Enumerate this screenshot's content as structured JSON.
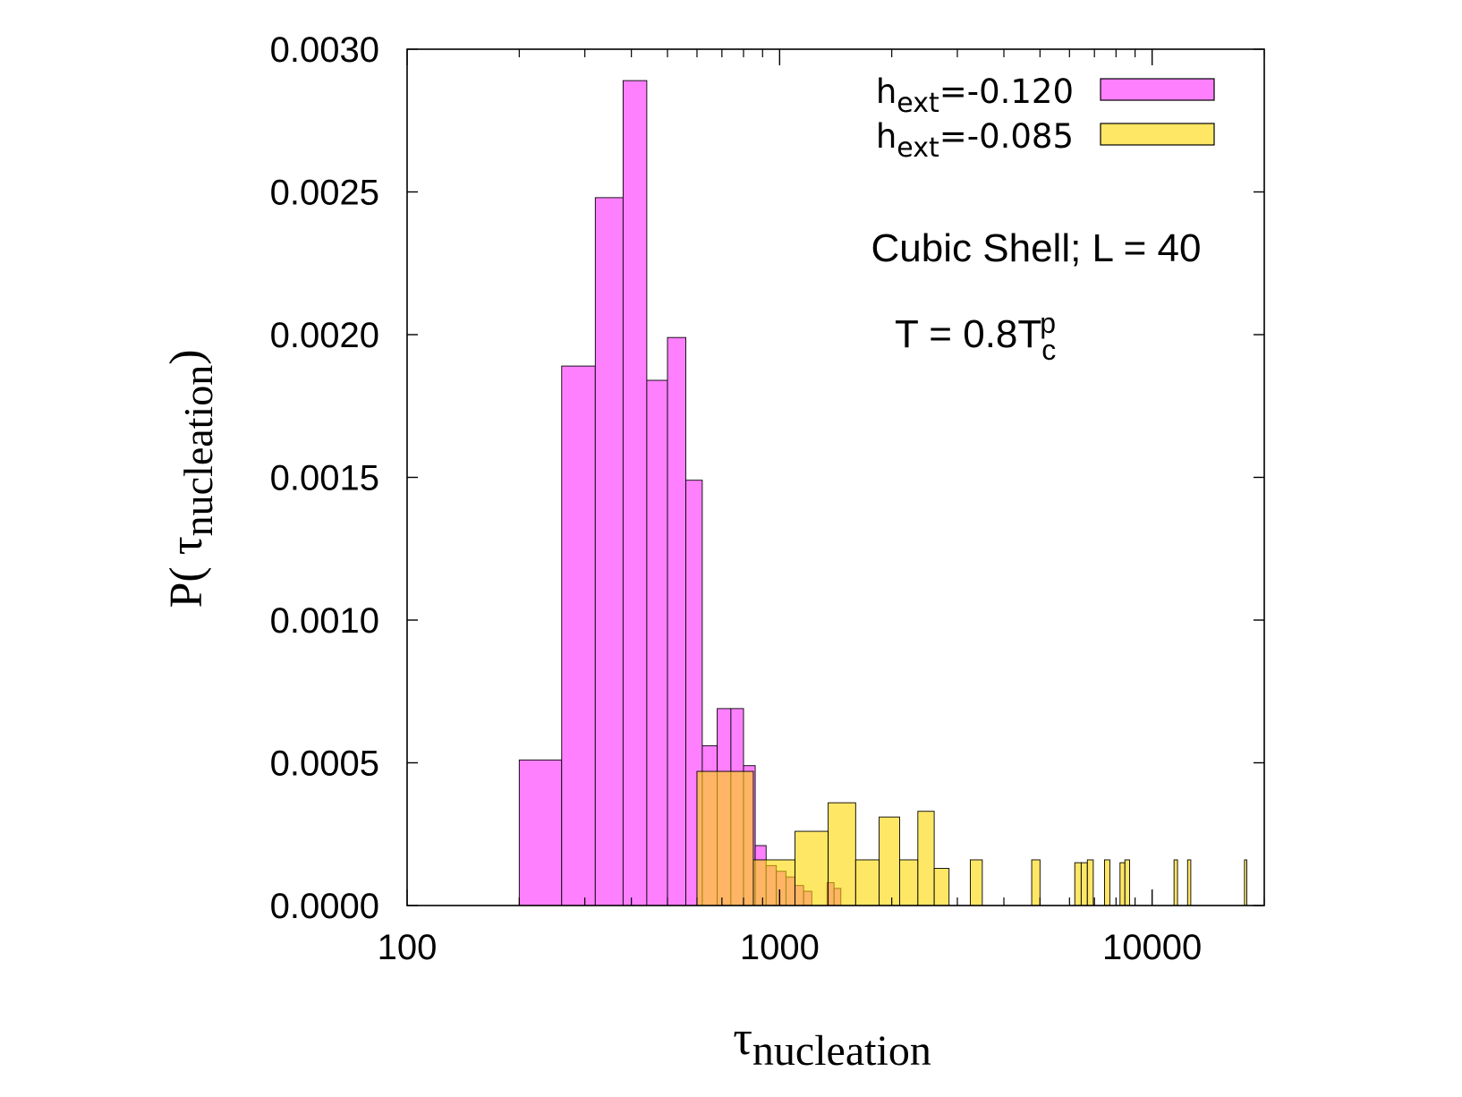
{
  "chart_data": {
    "type": "bar",
    "title": "",
    "xlabel": {
      "base": "τ",
      "sub": "nucleation"
    },
    "ylabel": {
      "prefix": "P( ",
      "base": "τ",
      "sub": "nucleation",
      "suffix": ")"
    },
    "xscale": "log",
    "xlim": [
      100,
      20000
    ],
    "ylim": [
      0,
      0.003
    ],
    "xticks": [
      "100",
      "1000",
      "10000"
    ],
    "xtick_values": [
      100,
      1000,
      10000
    ],
    "yticks": [
      "0.0000",
      "0.0005",
      "0.0010",
      "0.0015",
      "0.0020",
      "0.0025",
      "0.0030"
    ],
    "ytick_values": [
      0,
      0.0005,
      0.001,
      0.0015,
      0.002,
      0.0025,
      0.003
    ],
    "legend_position": "top-right",
    "annotations": {
      "system": "Cubic Shell; L = 40",
      "temp_prefix": "T = 0.8T",
      "temp_sub": "c",
      "temp_sup": "p"
    },
    "series": [
      {
        "name": "h_ext=-0.120",
        "legend_base": "h",
        "legend_sub": "ext",
        "legend_rest": "=-0.120",
        "color": "#ff80ff",
        "bins": [
          {
            "x0": 200,
            "x1": 260,
            "y": 0.00051
          },
          {
            "x0": 260,
            "x1": 320,
            "y": 0.00189
          },
          {
            "x0": 320,
            "x1": 380,
            "y": 0.00248
          },
          {
            "x0": 380,
            "x1": 440,
            "y": 0.00289
          },
          {
            "x0": 440,
            "x1": 500,
            "y": 0.00184
          },
          {
            "x0": 500,
            "x1": 560,
            "y": 0.00199
          },
          {
            "x0": 560,
            "x1": 620,
            "y": 0.00149
          },
          {
            "x0": 620,
            "x1": 680,
            "y": 0.00056
          },
          {
            "x0": 680,
            "x1": 740,
            "y": 0.00069
          },
          {
            "x0": 740,
            "x1": 800,
            "y": 0.00069
          },
          {
            "x0": 800,
            "x1": 860,
            "y": 0.00049
          },
          {
            "x0": 860,
            "x1": 920,
            "y": 0.00021
          },
          {
            "x0": 920,
            "x1": 980,
            "y": 0.00014
          },
          {
            "x0": 980,
            "x1": 1040,
            "y": 0.00012
          },
          {
            "x0": 1040,
            "x1": 1100,
            "y": 0.0001
          },
          {
            "x0": 1100,
            "x1": 1160,
            "y": 7e-05
          },
          {
            "x0": 1160,
            "x1": 1220,
            "y": 5e-05
          },
          {
            "x0": 1340,
            "x1": 1400,
            "y": 8e-05
          },
          {
            "x0": 1400,
            "x1": 1460,
            "y": 6e-05
          }
        ]
      },
      {
        "name": "h_ext=-0.085",
        "legend_base": "h",
        "legend_sub": "ext",
        "legend_rest": "=-0.085",
        "color": "#ffd700",
        "bins": [
          {
            "x0": 600,
            "x1": 850,
            "y": 0.00047
          },
          {
            "x0": 850,
            "x1": 1100,
            "y": 0.00016
          },
          {
            "x0": 1100,
            "x1": 1350,
            "y": 0.00026
          },
          {
            "x0": 1350,
            "x1": 1600,
            "y": 0.00036
          },
          {
            "x0": 1600,
            "x1": 1850,
            "y": 0.00016
          },
          {
            "x0": 1850,
            "x1": 2100,
            "y": 0.00031
          },
          {
            "x0": 2100,
            "x1": 2350,
            "y": 0.00016
          },
          {
            "x0": 2350,
            "x1": 2600,
            "y": 0.00033
          },
          {
            "x0": 2600,
            "x1": 2850,
            "y": 0.00013
          },
          {
            "x0": 3250,
            "x1": 3500,
            "y": 0.00016
          },
          {
            "x0": 4750,
            "x1": 5000,
            "y": 0.00016
          },
          {
            "x0": 6200,
            "x1": 6450,
            "y": 0.00015
          },
          {
            "x0": 6450,
            "x1": 6700,
            "y": 0.00015
          },
          {
            "x0": 6700,
            "x1": 6950,
            "y": 0.00016
          },
          {
            "x0": 7450,
            "x1": 7700,
            "y": 0.00016
          },
          {
            "x0": 8200,
            "x1": 8450,
            "y": 0.00015
          },
          {
            "x0": 8450,
            "x1": 8700,
            "y": 0.00016
          },
          {
            "x0": 11450,
            "x1": 11700,
            "y": 0.00016
          },
          {
            "x0": 12450,
            "x1": 12700,
            "y": 0.00016
          },
          {
            "x0": 17700,
            "x1": 17950,
            "y": 0.00016
          }
        ]
      }
    ]
  }
}
